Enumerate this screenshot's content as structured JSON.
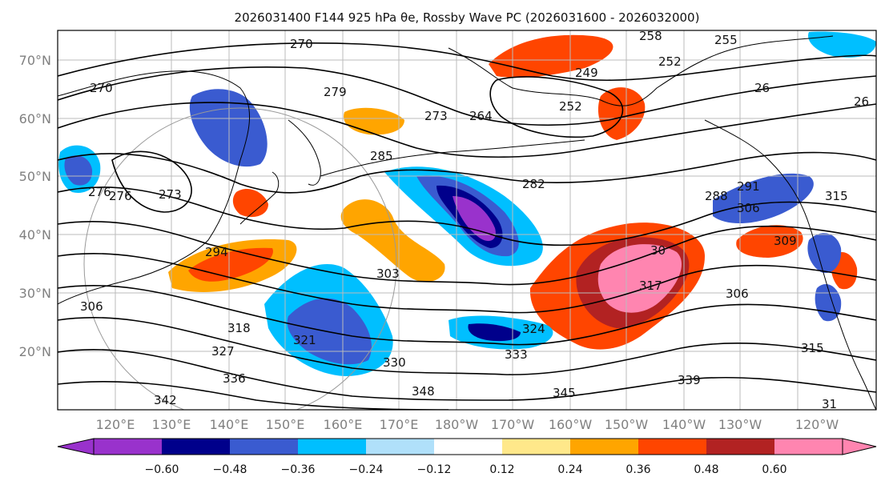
{
  "title": "2026031400 F144 925 hPa θe, Rossby Wave PC (2026031600 - 2026032000)",
  "map": {
    "lat_labels": [
      "70°N",
      "60°N",
      "50°N",
      "40°N",
      "30°N",
      "20°N"
    ],
    "lon_labels": [
      "120°E",
      "130°E",
      "140°E",
      "150°E",
      "160°E",
      "170°E",
      "180°W",
      "170°W",
      "160°W",
      "150°W",
      "140°W",
      "130°W",
      "120°W"
    ],
    "grid": true,
    "contour_labels": [
      "270",
      "276",
      "279",
      "273",
      "285",
      "264",
      "258",
      "255",
      "252",
      "249",
      "252",
      "26",
      "26",
      "270",
      "273",
      "276",
      "282",
      "288",
      "291",
      "306",
      "315",
      "294",
      "303",
      "30",
      "309",
      "317",
      "306",
      "306",
      "318",
      "321",
      "324",
      "327",
      "330",
      "333",
      "336",
      "339",
      "342",
      "345",
      "348",
      "315",
      "31"
    ]
  },
  "colorbar": {
    "ticks": [
      "−0.60",
      "−0.48",
      "−0.36",
      "−0.24",
      "−0.12",
      "0.12",
      "0.24",
      "0.36",
      "0.48",
      "0.60"
    ],
    "colors": [
      "#9932cc",
      "#00008b",
      "#3a5bd0",
      "#00bfff",
      "#b0e0fa",
      "#ffffff",
      "#ffe88a",
      "#ffa500",
      "#ff4500",
      "#b22222",
      "#ff85b0",
      "#ff85b0"
    ],
    "extend": "both"
  }
}
